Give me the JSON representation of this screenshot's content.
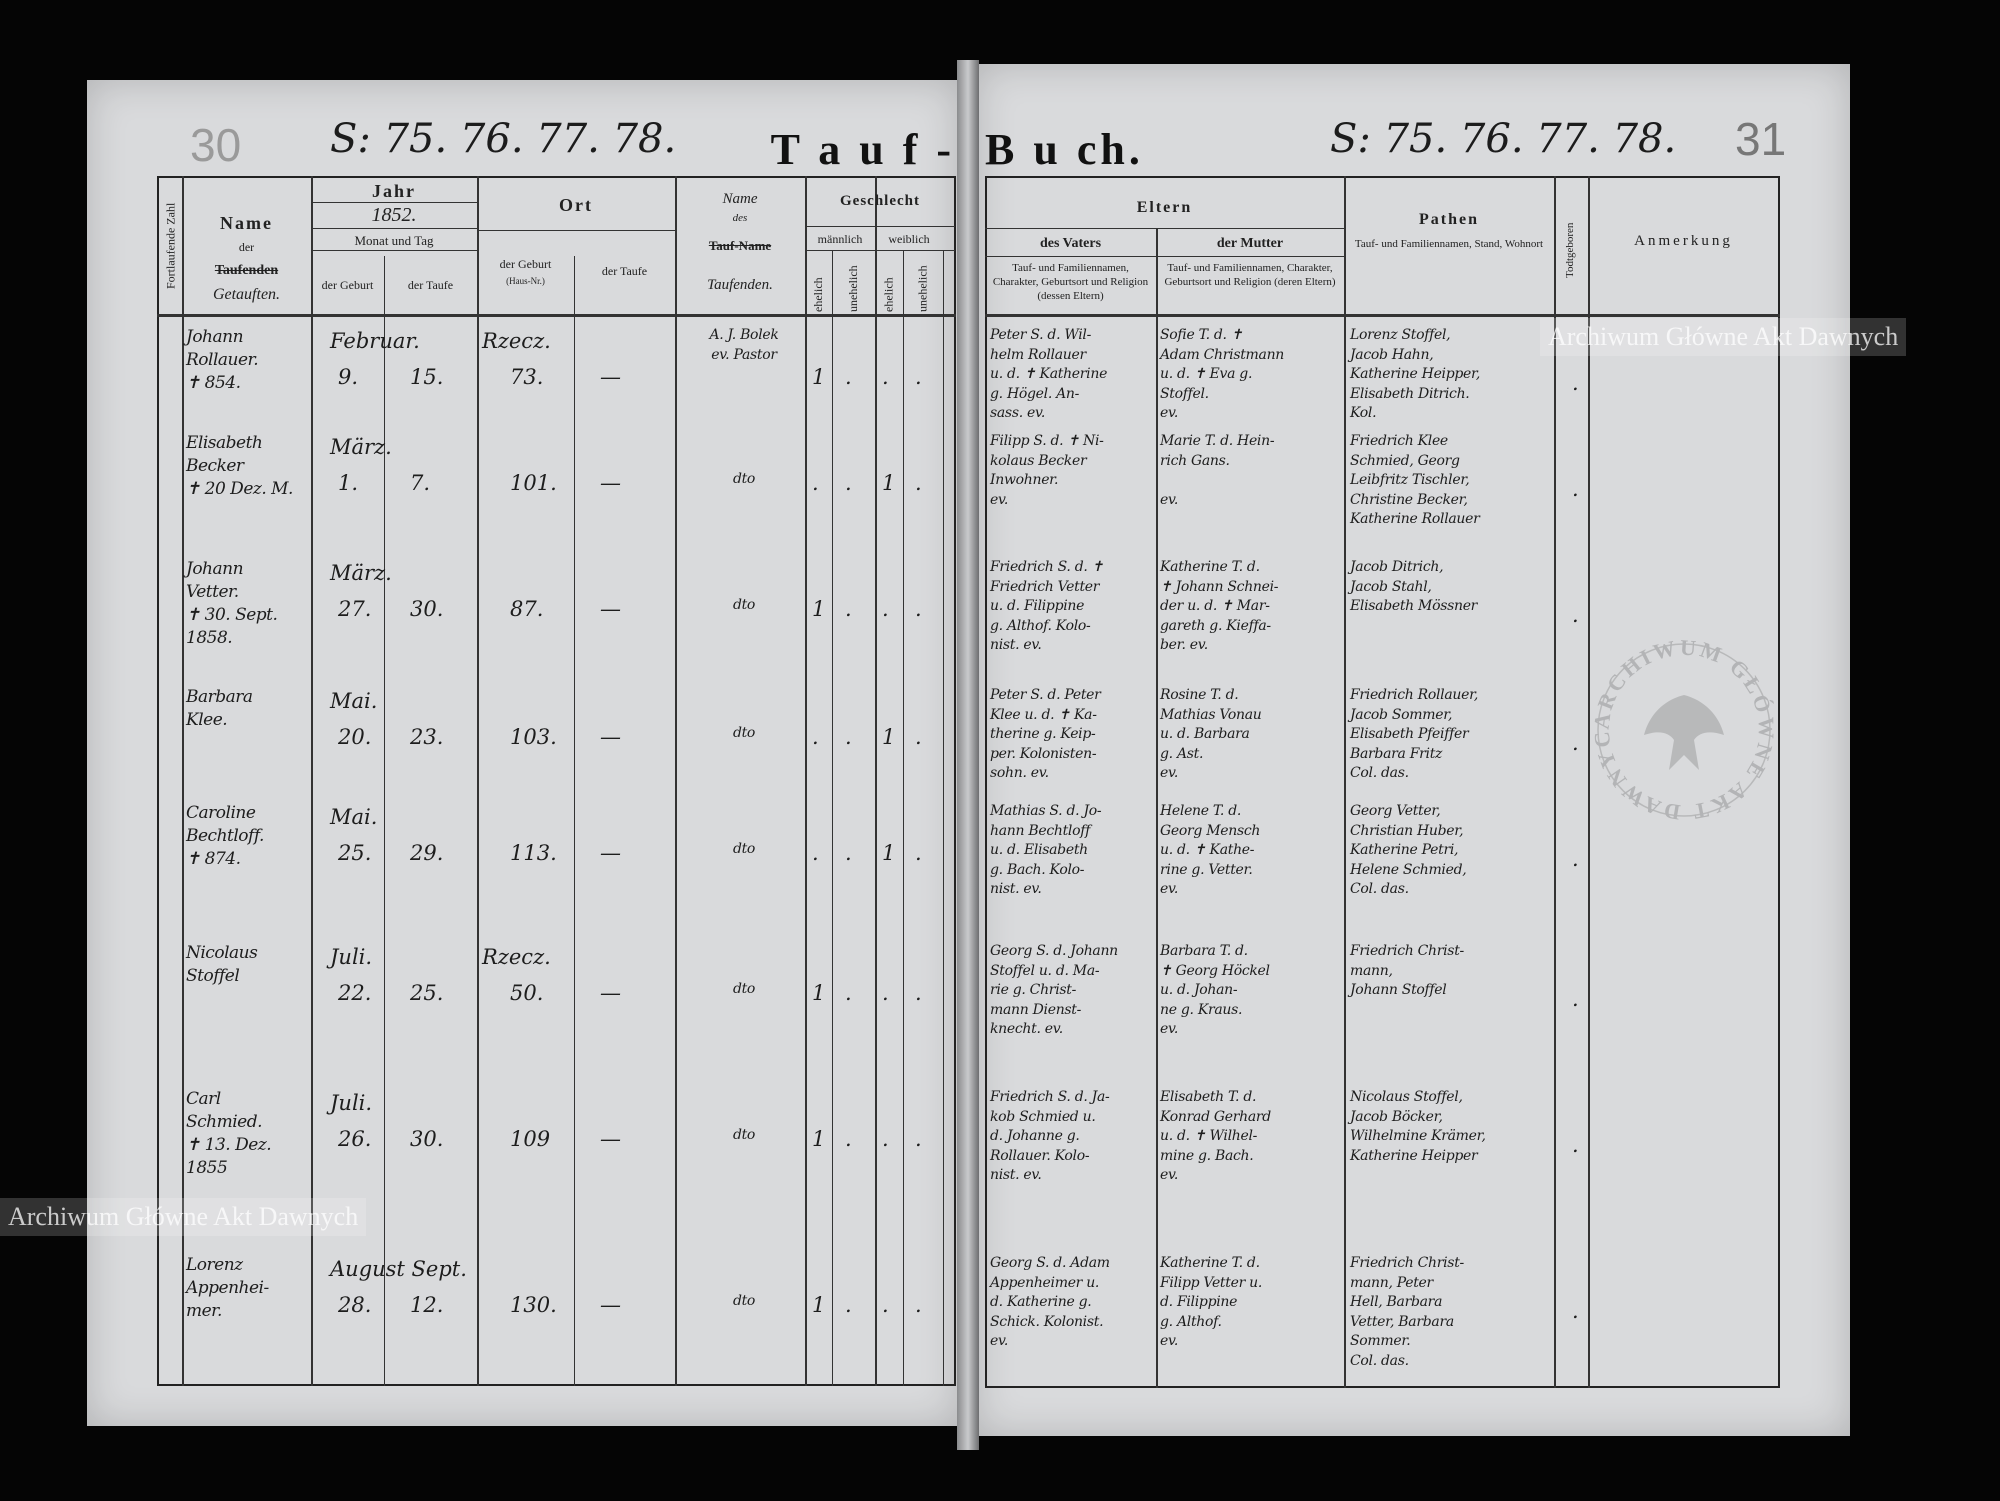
{
  "document": {
    "left_page": {
      "pencil_number": "30",
      "page_refs": "S: 75. 76. 77. 78.",
      "title_part": "T a u f -"
    },
    "right_page": {
      "pencil_number": "31",
      "page_refs": "S: 75. 76. 77. 78.",
      "title_part": "B u ch."
    },
    "headers": {
      "fortlaufende_zahl": "Fortlaufende Zahl",
      "name": "Name",
      "name_der": "der",
      "name_taufenden": "Taufenden",
      "name_getauften": "Getauften.",
      "jahr": "Jahr",
      "jahr_value": "1852.",
      "monat_und_tag": "Monat und Tag",
      "der_geburt": "der Geburt",
      "der_taufe": "der Taufe",
      "ort": "Ort",
      "ort_geburt": "der Geburt",
      "haus_nr": "(Haus-Nr.)",
      "ort_taufe": "der Taufe",
      "name_des": "Name",
      "des": "des",
      "tauf_name": "Tauf-Name",
      "taufenden_hand": "Taufenden.",
      "geschlecht": "Geschlecht",
      "maennlich": "männlich",
      "weiblich": "weiblich",
      "ehelich": "ehelich",
      "unehelich": "unehelich",
      "eltern": "Eltern",
      "des_vaters": "des Vaters",
      "der_mutter": "der Mutter",
      "vater_desc": "Tauf- und Familiennamen, Charakter, Geburtsort und Religion (dessen Eltern)",
      "mutter_desc": "Tauf- und Familiennamen, Charakter, Geburtsort und Religion (deren Eltern)",
      "pathen": "Pathen",
      "pathen_desc": "Tauf- und Familiennamen, Stand, Wohnort",
      "todtgeboren": "Todtgeboren",
      "anmerkung": "Anmerkung"
    },
    "entries": [
      {
        "name": "Johann\nRollauer.\n✝ 854.",
        "month": "Februar.",
        "birth_day": "9.",
        "baptism_day": "15.",
        "place": "Rzecz.",
        "house": "73.",
        "baptism_place": "—",
        "baptizer": "A. J. Bolek\nev. Pastor",
        "sex_col": 0,
        "mark": "1",
        "father": "Peter S. d. Wil-\nhelm Rollauer\nu. d. ✝ Katherine\ng. Högel. An-\nsass. ev.",
        "mother": "Sofie T. d. ✝\nAdam Christmann\nu. d. ✝ Eva g.\nStoffel.\nev.",
        "godparents": "Lorenz Stoffel,\nJacob Hahn,\nKatherine Heipper,\nElisabeth Ditrich.\nKol."
      },
      {
        "name": "Elisabeth\nBecker\n✝ 20 Dez. M.",
        "month": "März.",
        "birth_day": "1.",
        "baptism_day": "7.",
        "place": "",
        "house": "101.",
        "baptism_place": "—",
        "baptizer": "dto",
        "sex_col": 2,
        "mark": "1",
        "father": "Filipp S. d. ✝ Ni-\nkolaus Becker\nInwohner.\nev.",
        "mother": "Marie T. d. Hein-\nrich Gans.\n\nev.",
        "godparents": "Friedrich Klee\nSchmied, Georg\nLeibfritz Tischler,\nChristine Becker,\nKatherine Rollauer"
      },
      {
        "name": "Johann\nVetter.\n✝ 30. Sept. 1858.",
        "month": "März.",
        "birth_day": "27.",
        "baptism_day": "30.",
        "place": "",
        "house": "87.",
        "baptism_place": "—",
        "baptizer": "dto",
        "sex_col": 0,
        "mark": "1",
        "father": "Friedrich S. d. ✝\nFriedrich Vetter\nu. d. Filippine\ng. Althof. Kolo-\nnist. ev.",
        "mother": "Katherine T. d.\n✝ Johann Schnei-\nder u. d. ✝ Mar-\ngareth g. Kieffa-\nber. ev.",
        "godparents": "Jacob Ditrich,\nJacob Stahl,\nElisabeth Mössner"
      },
      {
        "name": "Barbara\nKlee.",
        "month": "Mai.",
        "birth_day": "20.",
        "baptism_day": "23.",
        "place": "",
        "house": "103.",
        "baptism_place": "—",
        "baptizer": "dto",
        "sex_col": 2,
        "mark": "1",
        "father": "Peter S. d. Peter\nKlee u. d. ✝ Ka-\ntherine g. Keip-\nper. Kolonisten-\nsohn. ev.",
        "mother": "Rosine T. d.\nMathias Vonau\nu. d. Barbara\ng. Ast.\nev.",
        "godparents": "Friedrich Rollauer,\nJacob Sommer,\nElisabeth Pfeiffer\nBarbara Fritz\nCol. das."
      },
      {
        "name": "Caroline\nBechtloff.\n✝ 874.",
        "month": "Mai.",
        "birth_day": "25.",
        "baptism_day": "29.",
        "place": "",
        "house": "113.",
        "baptism_place": "—",
        "baptizer": "dto",
        "sex_col": 2,
        "mark": "1",
        "father": "Mathias S. d. Jo-\nhann Bechtloff\nu. d. Elisabeth\ng. Bach. Kolo-\nnist. ev.",
        "mother": "Helene T. d.\nGeorg Mensch\nu. d. ✝ Kathe-\nrine g. Vetter.\nev.",
        "godparents": "Georg Vetter,\nChristian Huber,\nKatherine Petri,\nHelene Schmied,\nCol. das."
      },
      {
        "name": "Nicolaus\nStoffel",
        "month": "Juli.",
        "birth_day": "22.",
        "baptism_day": "25.",
        "place": "Rzecz.",
        "house": "50.",
        "baptism_place": "—",
        "baptizer": "dto",
        "sex_col": 0,
        "mark": "1",
        "father": "Georg S. d. Johann\nStoffel u. d. Ma-\nrie g. Christ-\nmann Dienst-\nknecht. ev.",
        "mother": "Barbara T. d.\n✝ Georg Höckel\nu. d. Johan-\nne g. Kraus.\nev.",
        "godparents": "Friedrich Christ-\nmann,\nJohann Stoffel"
      },
      {
        "name": "Carl\nSchmied.\n✝ 13. Dez. 1855",
        "month": "Juli.",
        "birth_day": "26.",
        "baptism_day": "30.",
        "place": "",
        "house": "109",
        "baptism_place": "—",
        "baptizer": "dto",
        "sex_col": 0,
        "mark": "1",
        "father": "Friedrich S. d. Ja-\nkob Schmied u.\nd. Johanne g.\nRollauer. Kolo-\nnist. ev.",
        "mother": "Elisabeth T. d.\nKonrad Gerhard\nu. d. ✝ Wilhel-\nmine g. Bach.\nev.",
        "godparents": "Nicolaus Stoffel,\nJacob Böcker,\nWilhelmine Krämer,\nKatherine Heipper"
      },
      {
        "name": "Lorenz\nAppenhei-\nmer.",
        "month": "August Sept.",
        "birth_day": "28.",
        "baptism_day": "12.",
        "place": "",
        "house": "130.",
        "baptism_place": "—",
        "baptizer": "dto",
        "sex_col": 0,
        "mark": "1",
        "father": "Georg S. d. Adam\nAppenheimer u.\nd. Katherine g.\nSchick. Kolonist.\nev.",
        "mother": "Katherine T. d.\nFilipp Vetter u.\nd. Filippine\ng. Althof.\nev.",
        "godparents": "Friedrich Christ-\nmann, Peter\nHell, Barbara\nVetter, Barbara\nSommer.\nCol. das."
      }
    ],
    "watermarks": {
      "text": "Archiwum Główne Akt Dawnych",
      "stamp_text": "ARCHIWUM GŁÓWNE AKT DAWNYCH"
    },
    "colors": {
      "paper": "#d9dadc",
      "ink": "#1c1c1c",
      "background": "#050505"
    }
  }
}
